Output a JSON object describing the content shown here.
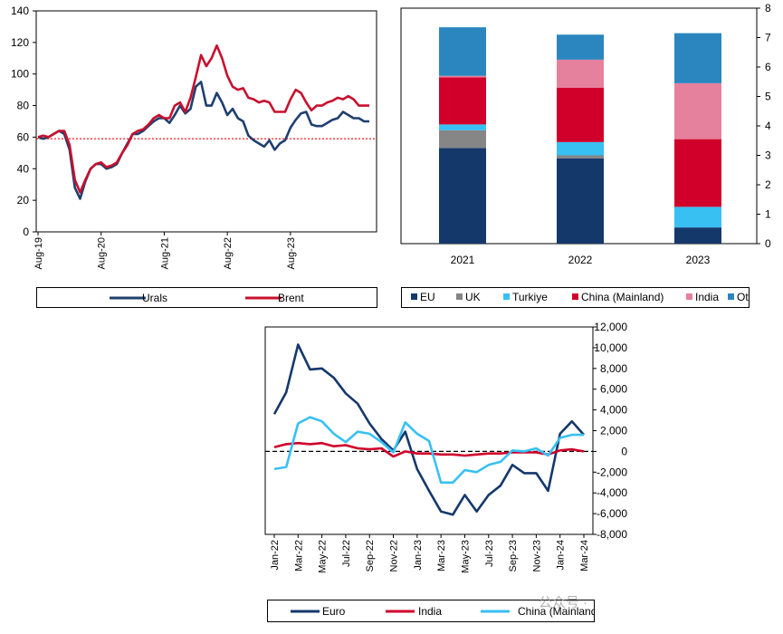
{
  "chart_data": [
    {
      "type": "line",
      "x": [
        "Aug-19",
        "Sep-19",
        "Oct-19",
        "Nov-19",
        "Dec-19",
        "Jan-20",
        "Feb-20",
        "Mar-20",
        "Apr-20",
        "May-20",
        "Jun-20",
        "Jul-20",
        "Aug-20",
        "Sep-20",
        "Oct-20",
        "Nov-20",
        "Dec-20",
        "Jan-21",
        "Feb-21",
        "Mar-21",
        "Apr-21",
        "May-21",
        "Jun-21",
        "Jul-21",
        "Aug-21",
        "Sep-21",
        "Oct-21",
        "Nov-21",
        "Dec-21",
        "Jan-22",
        "Feb-22",
        "Mar-22",
        "Apr-22",
        "May-22",
        "Jun-22",
        "Jul-22",
        "Aug-22",
        "Sep-22",
        "Oct-22",
        "Nov-22",
        "Dec-22",
        "Jan-23",
        "Feb-23",
        "Mar-23",
        "Apr-23",
        "May-23",
        "Jun-23",
        "Jul-23",
        "Aug-23",
        "Sep-23",
        "Oct-23",
        "Nov-23",
        "Dec-23",
        "Jan-24",
        "Feb-24",
        "Mar-24",
        "Apr-24",
        "May-24",
        "Jun-24",
        "Jul-24",
        "Aug-24",
        "Sep-24",
        "Oct-24",
        "Nov-24"
      ],
      "x_tick_labels": [
        "Aug-19",
        "Aug-20",
        "Aug-21",
        "Aug-22",
        "Aug-23"
      ],
      "series": [
        {
          "name": "Urals",
          "color": "#1f3f6e",
          "values": [
            60,
            59,
            60,
            62,
            64,
            62,
            52,
            28,
            21,
            32,
            40,
            43,
            43,
            40,
            41,
            43,
            50,
            56,
            62,
            62,
            64,
            67,
            70,
            72,
            72,
            69,
            74,
            80,
            75,
            78,
            92,
            95,
            80,
            80,
            88,
            82,
            74,
            78,
            72,
            70,
            61,
            58,
            56,
            54,
            58,
            52,
            56,
            58,
            66,
            71,
            75,
            76,
            68,
            67,
            67,
            69,
            71,
            72,
            76,
            74,
            72,
            72,
            70,
            70
          ]
        },
        {
          "name": "Brent",
          "color": "#c8102e",
          "values": [
            60,
            61,
            60,
            62,
            64,
            64,
            55,
            33,
            25,
            33,
            40,
            43,
            44,
            41,
            42,
            44,
            50,
            55,
            62,
            64,
            65,
            68,
            72,
            74,
            72,
            72,
            80,
            82,
            76,
            85,
            98,
            112,
            105,
            110,
            118,
            110,
            99,
            92,
            90,
            91,
            85,
            84,
            82,
            83,
            82,
            76,
            76,
            76,
            84,
            90,
            88,
            82,
            77,
            80,
            80,
            82,
            83,
            85,
            84,
            86,
            84,
            80,
            80,
            80
          ]
        }
      ],
      "reference_line": {
        "value": 59,
        "color": "#ff0000",
        "style": "dotted"
      },
      "ylim": [
        0,
        140
      ],
      "y_ticks": [
        0,
        20,
        40,
        60,
        80,
        100,
        120,
        140
      ],
      "legend": "bottom",
      "grid": false
    },
    {
      "type": "bar",
      "stacked": true,
      "categories": [
        "2021",
        "2022",
        "2023"
      ],
      "series": [
        {
          "name": "EU",
          "color": "#15386b",
          "values": [
            3.25,
            2.9,
            0.55
          ]
        },
        {
          "name": "UK",
          "color": "#868686",
          "values": [
            0.6,
            0.1,
            0
          ]
        },
        {
          "name": "Turkiye",
          "color": "#38c0f3",
          "values": [
            0.2,
            0.45,
            0.7
          ]
        },
        {
          "name": "China (Mainland)",
          "color": "#d0002a",
          "values": [
            1.6,
            1.85,
            2.3
          ]
        },
        {
          "name": "India",
          "color": "#e6819d",
          "values": [
            0.05,
            0.95,
            1.9
          ]
        },
        {
          "name": "Other",
          "color": "#2b86c0",
          "values": [
            1.65,
            0.85,
            1.7
          ]
        }
      ],
      "ylim": [
        0,
        8
      ],
      "y_ticks": [
        0,
        1,
        2,
        3,
        4,
        5,
        6,
        7,
        8
      ],
      "y_axis_side": "right",
      "legend": "bottom",
      "grid": false
    },
    {
      "type": "line",
      "x": [
        "Jan-22",
        "Feb-22",
        "Mar-22",
        "Apr-22",
        "May-22",
        "Jun-22",
        "Jul-22",
        "Aug-22",
        "Sep-22",
        "Oct-22",
        "Nov-22",
        "Dec-22",
        "Jan-23",
        "Feb-23",
        "Mar-23",
        "Apr-23",
        "May-23",
        "Jun-23",
        "Jul-23",
        "Aug-23",
        "Sep-23",
        "Oct-23",
        "Nov-23",
        "Dec-23",
        "Jan-24",
        "Feb-24",
        "Mar-24"
      ],
      "x_tick_labels": [
        "Jan-22",
        "Mar-22",
        "May-22",
        "Jul-22",
        "Sep-22",
        "Nov-22",
        "Jan-23",
        "Mar-23",
        "May-23",
        "Jul-23",
        "Sep-23",
        "Nov-23",
        "Jan-24",
        "Mar-24"
      ],
      "series": [
        {
          "name": "Euro",
          "color": "#15386b",
          "values": [
            3600,
            5700,
            10300,
            7900,
            8000,
            7100,
            5600,
            4600,
            2700,
            1200,
            100,
            1900,
            -1700,
            -3800,
            -5800,
            -6100,
            -4200,
            -5800,
            -4200,
            -3300,
            -1300,
            -2100,
            -2100,
            -3800,
            1700,
            2900,
            1600
          ]
        },
        {
          "name": "India",
          "color": "#d0002a",
          "values": [
            400,
            700,
            800,
            700,
            800,
            500,
            600,
            300,
            200,
            300,
            -500,
            0,
            -200,
            -200,
            -300,
            -300,
            -400,
            -300,
            -200,
            -200,
            -100,
            -100,
            -100,
            -300,
            100,
            200,
            0
          ]
        },
        {
          "name": "China (Mainland)",
          "color": "#38c0f3",
          "values": [
            -1700,
            -1500,
            2700,
            3300,
            2900,
            1700,
            900,
            1900,
            1700,
            900,
            -100,
            2800,
            1700,
            1000,
            -3000,
            -3000,
            -1800,
            -2000,
            -1300,
            -1000,
            100,
            0,
            300,
            -400,
            1300,
            1600,
            1600
          ]
        }
      ],
      "zero_line": {
        "value": 0,
        "color": "#000000",
        "style": "dashed"
      },
      "ylim": [
        -8000,
        12000
      ],
      "y_ticks": [
        "-8,000",
        "-6,000",
        "-4,000",
        "-2,000",
        "0",
        "2,000",
        "4,000",
        "6,000",
        "8,000",
        "10,000",
        "12,000"
      ],
      "y_tick_values": [
        -8000,
        -6000,
        -4000,
        -2000,
        0,
        2000,
        4000,
        6000,
        8000,
        10000,
        12000
      ],
      "y_axis_side": "right",
      "legend": "bottom",
      "grid": false
    }
  ],
  "watermark": "公众号 ·"
}
